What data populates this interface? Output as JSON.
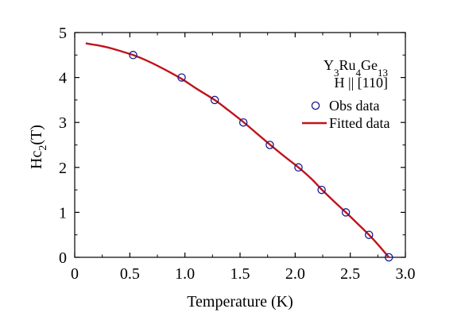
{
  "chart_data": {
    "type": "scatter",
    "xlabel": "Temperature (K)",
    "ylabel_main": "Hc",
    "ylabel_sub": "2",
    "ylabel_tail": "(T)",
    "xlim": [
      0,
      3.0
    ],
    "ylim": [
      0,
      5
    ],
    "x_ticks": [
      0,
      0.5,
      1.0,
      1.5,
      2.0,
      2.5,
      3.0
    ],
    "x_tick_labels": [
      "0",
      "0.5",
      "1.0",
      "1.5",
      "2.0",
      "2.5",
      "3.0"
    ],
    "y_ticks": [
      0,
      1,
      2,
      3,
      4,
      5
    ],
    "y_tick_labels": [
      "0",
      "1",
      "2",
      "3",
      "4",
      "5"
    ],
    "grid": false,
    "legend_position": "top-right",
    "annotation": {
      "formula_parts": [
        {
          "text": "Y",
          "sub": false
        },
        {
          "text": "3",
          "sub": true
        },
        {
          "text": "Ru",
          "sub": false
        },
        {
          "text": "4",
          "sub": true
        },
        {
          "text": "Ge",
          "sub": false
        },
        {
          "text": "13",
          "sub": true
        }
      ],
      "field_direction": "H || [110]"
    },
    "series": [
      {
        "name": "Obs data",
        "kind": "scatter",
        "color": "#1a1a8c",
        "marker": "open-circle",
        "x": [
          0.53,
          0.97,
          1.27,
          1.53,
          1.77,
          2.03,
          2.24,
          2.46,
          2.67,
          2.85
        ],
        "y": [
          4.5,
          4.0,
          3.5,
          3.0,
          2.5,
          2.0,
          1.5,
          1.0,
          0.5,
          0.0
        ]
      },
      {
        "name": "Fitted data",
        "kind": "line",
        "color": "#c0141c",
        "x": [
          0.1,
          0.2,
          0.3,
          0.4,
          0.53,
          0.65,
          0.8,
          0.97,
          1.1,
          1.27,
          1.4,
          1.53,
          1.65,
          1.77,
          1.9,
          2.03,
          2.15,
          2.24,
          2.35,
          2.46,
          2.57,
          2.67,
          2.76,
          2.85
        ],
        "y": [
          4.76,
          4.72,
          4.67,
          4.6,
          4.5,
          4.38,
          4.2,
          3.97,
          3.76,
          3.5,
          3.26,
          3.01,
          2.76,
          2.51,
          2.25,
          2.0,
          1.74,
          1.51,
          1.25,
          1.0,
          0.74,
          0.5,
          0.26,
          0.0
        ]
      }
    ]
  }
}
